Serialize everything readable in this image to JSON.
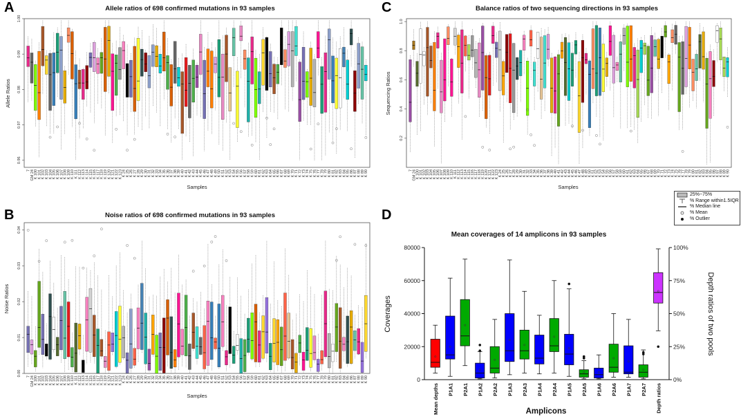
{
  "chart_data": [
    {
      "id": "A",
      "panel_letter": "A",
      "type": "box",
      "title": "Allele ratios of 698 confirmed mutations in 93 samples",
      "xlabel": "Samples",
      "ylabel": "Allele Ratios",
      "ylim": [
        0.958,
        1.0
      ],
      "yticks": [
        0.96,
        0.97,
        0.98,
        0.99,
        1.0
      ],
      "ytick_labels": [
        "0.96",
        "0.97",
        "0.98",
        "0.99",
        "1.00"
      ]
    },
    {
      "id": "B",
      "panel_letter": "B",
      "type": "box",
      "title": "Noise ratios of 698 confirmed mutations in 93 samples",
      "xlabel": "Samples",
      "ylabel": "Noise Ratios",
      "ylim": [
        0.0,
        0.042
      ],
      "yticks": [
        0.0,
        0.01,
        0.02,
        0.03,
        0.04
      ],
      "ytick_labels": [
        "0.00",
        "0.01",
        "0.02",
        "0.03",
        "0.04"
      ]
    },
    {
      "id": "C",
      "panel_letter": "C",
      "type": "box",
      "title": "Balance ratios of two  sequencing directions in 93 samples",
      "xlabel": "Samples",
      "ylabel": "Sequencing Ratios",
      "ylim": [
        0.0,
        1.02
      ],
      "yticks": [
        0.2,
        0.4,
        0.6,
        0.8,
        1.0
      ],
      "ytick_labels": [
        "0.2",
        "0.4",
        "0.6",
        "0.8",
        "1.0"
      ]
    },
    {
      "id": "D",
      "panel_letter": "D",
      "type": "box",
      "title": "Mean coverages of 14 amplicons in 93 samples",
      "xlabel": "Amplicons",
      "ylabel": "Coverages",
      "ylabel_right": "Depth ratios of two pools",
      "ylim": [
        0,
        80000
      ],
      "yticks": [
        0,
        20000,
        40000,
        60000,
        80000
      ],
      "ytick_labels": [
        "0",
        "20000",
        "40000",
        "60000",
        "80000"
      ],
      "ylim_right": [
        0,
        100
      ],
      "yticks_right": [
        0,
        25,
        50,
        75,
        100
      ],
      "ytick_labels_right": [
        "0%",
        "25%",
        "50%",
        "75%",
        "100%"
      ],
      "categories": [
        "Mean depths",
        "P1A1",
        "P2A1",
        "P1A2",
        "P2A2",
        "P1A3",
        "P2A3",
        "P1A4",
        "P2A4",
        "P1A5",
        "P2A5",
        "P1A6",
        "P2A6",
        "P1A7",
        "P2A7",
        "Depth ratios"
      ],
      "boxes": [
        {
          "name": "Mean depths",
          "color": "#ff0000",
          "axis": "left",
          "whisker_low": 4000,
          "q1": 7500,
          "median": 10500,
          "q3": 24500,
          "whisker_high": 33000,
          "mean": 14000,
          "outliers": []
        },
        {
          "name": "P1A1",
          "color": "#0000ff",
          "axis": "left",
          "whisker_low": 2000,
          "q1": 12500,
          "median": 15000,
          "q3": 38500,
          "whisker_high": 61500,
          "mean": 20000,
          "outliers": []
        },
        {
          "name": "P2A1",
          "color": "#00aa00",
          "axis": "left",
          "whisker_low": 8500,
          "q1": 20500,
          "median": 26500,
          "q3": 48500,
          "whisker_high": 73000,
          "mean": 33000,
          "outliers": []
        },
        {
          "name": "P1A2",
          "color": "#0000ff",
          "axis": "left",
          "whisker_low": 500,
          "q1": 1000,
          "median": 4000,
          "q3": 10000,
          "whisker_high": 17000,
          "mean": 6000,
          "outliers": [
            17500,
            21000
          ]
        },
        {
          "name": "P2A2",
          "color": "#00aa00",
          "axis": "left",
          "whisker_low": 1000,
          "q1": 4000,
          "median": 7000,
          "q3": 20000,
          "whisker_high": 36500,
          "mean": 12000,
          "outliers": []
        },
        {
          "name": "P1A3",
          "color": "#0000ff",
          "axis": "left",
          "whisker_low": 3000,
          "q1": 11000,
          "median": 17500,
          "q3": 40000,
          "whisker_high": 72500,
          "mean": 24000,
          "outliers": []
        },
        {
          "name": "P2A3",
          "color": "#00aa00",
          "axis": "left",
          "whisker_low": 4000,
          "q1": 12500,
          "median": 17500,
          "q3": 30000,
          "whisker_high": 53500,
          "mean": 21000,
          "outliers": []
        },
        {
          "name": "P1A4",
          "color": "#0000ff",
          "axis": "left",
          "whisker_low": 3500,
          "q1": 9500,
          "median": 13000,
          "q3": 27000,
          "whisker_high": 39000,
          "mean": 17000,
          "outliers": []
        },
        {
          "name": "P2A4",
          "color": "#00aa00",
          "axis": "left",
          "whisker_low": 4000,
          "q1": 17000,
          "median": 20500,
          "q3": 37000,
          "whisker_high": 60000,
          "mean": 26000,
          "outliers": []
        },
        {
          "name": "P1A5",
          "color": "#0000ff",
          "axis": "left",
          "whisker_low": 2000,
          "q1": 9000,
          "median": 15500,
          "q3": 27500,
          "whisker_high": 55000,
          "mean": 19000,
          "outliers": [
            58000
          ]
        },
        {
          "name": "P2A5",
          "color": "#00aa00",
          "axis": "left",
          "whisker_low": 500,
          "q1": 1500,
          "median": 3500,
          "q3": 6000,
          "whisker_high": 11500,
          "mean": 4500,
          "outliers": [
            13000,
            14000
          ]
        },
        {
          "name": "P1A6",
          "color": "#0000ff",
          "axis": "left",
          "whisker_low": 500,
          "q1": 1000,
          "median": 3000,
          "q3": 7000,
          "whisker_high": 15000,
          "mean": 4500,
          "outliers": []
        },
        {
          "name": "P2A6",
          "color": "#00aa00",
          "axis": "left",
          "whisker_low": 1500,
          "q1": 4500,
          "median": 7500,
          "q3": 21500,
          "whisker_high": 40000,
          "mean": 13000,
          "outliers": []
        },
        {
          "name": "P1A7",
          "color": "#0000ff",
          "axis": "left",
          "whisker_low": 1500,
          "q1": 3500,
          "median": 4500,
          "q3": 20500,
          "whisker_high": 36500,
          "mean": 11000,
          "outliers": []
        },
        {
          "name": "P2A7",
          "color": "#00aa00",
          "axis": "left",
          "whisker_low": 500,
          "q1": 1500,
          "median": 4500,
          "q3": 9000,
          "whisker_high": 18000,
          "mean": 6000,
          "outliers": [
            15500,
            16500
          ]
        },
        {
          "name": "Depth ratios",
          "color": "#cc33ff",
          "axis": "right",
          "whisker_low": 37,
          "q1": 58,
          "median": 66,
          "q3": 81,
          "whisker_high": 99,
          "mean": 67,
          "outliers": [
            25
          ]
        }
      ]
    }
  ],
  "legend": {
    "items": [
      "25%~75%",
      "% Range within1.5IQR",
      "% Median line",
      "% Mean",
      "% Outlier"
    ]
  }
}
